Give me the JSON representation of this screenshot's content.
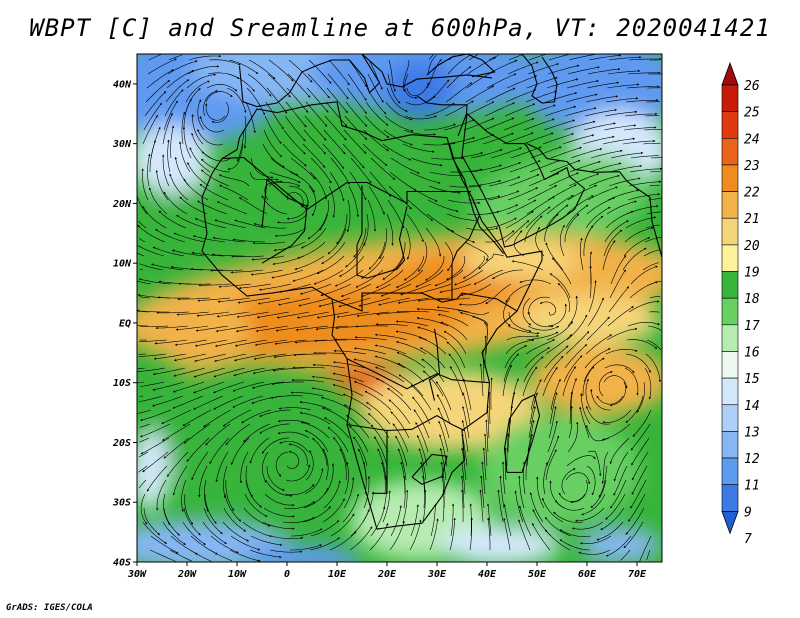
{
  "title": "WBPT [C] and Sreamline at 600hPa, VT: 2020041421",
  "credit": "GrADS: IGES/COLA",
  "map": {
    "lon_range": [
      -30,
      75
    ],
    "lat_range": [
      -40,
      45
    ],
    "lat_ticks": [
      {
        "value": 40,
        "label": "40N"
      },
      {
        "value": 30,
        "label": "30N"
      },
      {
        "value": 20,
        "label": "20N"
      },
      {
        "value": 10,
        "label": "10N"
      },
      {
        "value": 0,
        "label": "EQ"
      },
      {
        "value": -10,
        "label": "10S"
      },
      {
        "value": -20,
        "label": "20S"
      },
      {
        "value": -30,
        "label": "30S"
      },
      {
        "value": -40,
        "label": "40S"
      }
    ],
    "lon_ticks": [
      {
        "value": -30,
        "label": "30W"
      },
      {
        "value": -20,
        "label": "20W"
      },
      {
        "value": -10,
        "label": "10W"
      },
      {
        "value": 0,
        "label": "0"
      },
      {
        "value": 10,
        "label": "10E"
      },
      {
        "value": 20,
        "label": "20E"
      },
      {
        "value": 30,
        "label": "30E"
      },
      {
        "value": 40,
        "label": "40E"
      },
      {
        "value": 50,
        "label": "50E"
      },
      {
        "value": 60,
        "label": "60E"
      },
      {
        "value": 70,
        "label": "70E"
      }
    ]
  },
  "colorbar": {
    "levels": [
      "7",
      "9",
      "11",
      "12",
      "13",
      "14",
      "15",
      "16",
      "17",
      "18",
      "19",
      "20",
      "21",
      "22",
      "23",
      "24",
      "25",
      "26"
    ],
    "colors": [
      "#1f5fd6",
      "#3c7ae6",
      "#5e9af0",
      "#86b6f4",
      "#aecff7",
      "#d4e8fb",
      "#eef8ee",
      "#b6ecb0",
      "#68cf63",
      "#37b43a",
      "#fbf29a",
      "#f6d57a",
      "#f2b24a",
      "#ee8c1f",
      "#e9641a",
      "#df3a10",
      "#c81a09",
      "#a30a0a"
    ]
  },
  "field_colors": {
    "very_cold": "#3c7ae6",
    "cold": "#5e9af0",
    "cool": "#86b6f4",
    "pale": "#d4e8fb",
    "lightgreen": "#b6ecb0",
    "green": "#37b43a",
    "midgreen": "#68cf63",
    "yellow": "#fbf29a",
    "lightorange": "#f6d57a",
    "orange": "#f2b24a",
    "darkorange": "#ee8c1f",
    "red": "#e9641a"
  }
}
